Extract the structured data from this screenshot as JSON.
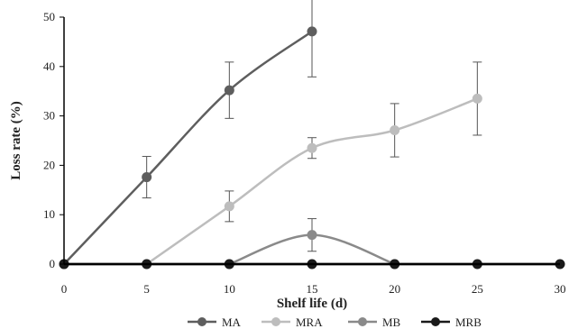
{
  "chart_data": {
    "type": "line",
    "xlabel": "Shelf life (d)",
    "ylabel": "Loss rate (%)",
    "xlim": [
      0,
      30
    ],
    "ylim": [
      0,
      50
    ],
    "xticks": [
      0,
      5,
      10,
      15,
      20,
      25,
      30
    ],
    "yticks": [
      0,
      10,
      20,
      30,
      40,
      50
    ],
    "grid": false,
    "legend_position": "bottom",
    "series": [
      {
        "name": "MA",
        "color": "#5e5e5e",
        "x": [
          0,
          5,
          10,
          15
        ],
        "y": [
          0,
          17.6,
          35.2,
          47.1
        ],
        "err": [
          0,
          4.2,
          5.7,
          9.2
        ]
      },
      {
        "name": "MRA",
        "color": "#bdbdbd",
        "x": [
          5,
          10,
          15,
          20,
          25
        ],
        "y": [
          0,
          11.7,
          23.5,
          27.1,
          33.5
        ],
        "err": [
          0,
          3.1,
          2.1,
          5.4,
          7.4
        ]
      },
      {
        "name": "MB",
        "color": "#8a8a8a",
        "x": [
          10,
          15,
          20
        ],
        "y": [
          0,
          5.9,
          0
        ],
        "err": [
          0,
          3.3,
          0
        ]
      },
      {
        "name": "MRB",
        "color": "#1a1a1a",
        "x": [
          0,
          5,
          10,
          15,
          20,
          25,
          30
        ],
        "y": [
          0,
          0,
          0,
          0,
          0,
          0,
          0
        ],
        "err": [
          0,
          0,
          0,
          0,
          0,
          0,
          0
        ]
      }
    ],
    "draw_order": [
      "MRA",
      "MB",
      "MA",
      "MRB"
    ]
  }
}
